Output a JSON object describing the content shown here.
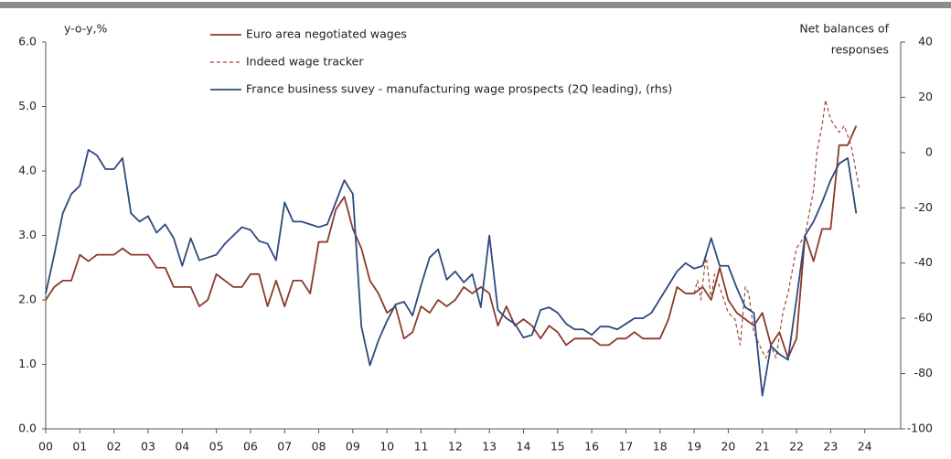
{
  "chart_data": {
    "type": "line",
    "ylabel": "y-o-y,%",
    "y2label": [
      "Net balances of",
      "responses"
    ],
    "xlim": [
      0,
      25
    ],
    "xticks": [
      {
        "value": 0,
        "label": "00"
      },
      {
        "value": 1,
        "label": "01"
      },
      {
        "value": 2,
        "label": "02"
      },
      {
        "value": 3,
        "label": "03"
      },
      {
        "value": 4,
        "label": "04"
      },
      {
        "value": 5,
        "label": "05"
      },
      {
        "value": 6,
        "label": "06"
      },
      {
        "value": 7,
        "label": "07"
      },
      {
        "value": 8,
        "label": "08"
      },
      {
        "value": 9,
        "label": "09"
      },
      10,
      11,
      12,
      13,
      14,
      15,
      16,
      17,
      18,
      19,
      20,
      21,
      22,
      23,
      24
    ],
    "ylim": [
      0,
      6
    ],
    "yticks": [
      {
        "value": 0,
        "label": "0.0"
      },
      {
        "value": 1,
        "label": "1.0"
      },
      {
        "value": 2,
        "label": "2.0"
      },
      {
        "value": 3,
        "label": "3.0"
      },
      {
        "value": 4,
        "label": "4.0"
      },
      {
        "value": 5,
        "label": "5.0"
      },
      {
        "value": 6,
        "label": "6.0"
      }
    ],
    "y2lim": [
      -100,
      40
    ],
    "y2ticks": [
      -100,
      -80,
      -60,
      -40,
      -20,
      0,
      20,
      40
    ],
    "series": [
      {
        "name": "Euro area negotiated wages",
        "color": "#8b3a2b",
        "dash": false,
        "x": [
          0,
          0.25,
          0.5,
          0.75,
          1,
          1.25,
          1.5,
          1.75,
          2,
          2.25,
          2.5,
          2.75,
          3,
          3.25,
          3.5,
          3.75,
          4,
          4.25,
          4.5,
          4.75,
          5,
          5.25,
          5.5,
          5.75,
          6,
          6.25,
          6.5,
          6.75,
          7,
          7.25,
          7.5,
          7.75,
          8,
          8.25,
          8.5,
          8.75,
          9,
          9.25,
          9.5,
          9.75,
          10,
          10.25,
          10.5,
          10.75,
          11,
          11.25,
          11.5,
          11.75,
          12,
          12.25,
          12.5,
          12.75,
          13,
          13.25,
          13.5,
          13.75,
          14,
          14.25,
          14.5,
          14.75,
          15,
          15.25,
          15.5,
          15.75,
          16,
          16.25,
          16.5,
          16.75,
          17,
          17.25,
          17.5,
          17.75,
          18,
          18.25,
          18.5,
          18.75,
          19,
          19.25,
          19.5,
          19.75,
          20,
          20.25,
          20.5,
          20.75,
          21,
          21.25,
          21.5,
          21.75,
          22,
          22.25,
          22.5,
          22.75,
          23,
          23.25,
          23.5,
          23.75
        ],
        "values": [
          2.0,
          2.2,
          2.3,
          2.3,
          2.7,
          2.6,
          2.7,
          2.7,
          2.7,
          2.8,
          2.7,
          2.7,
          2.7,
          2.5,
          2.5,
          2.2,
          2.2,
          2.2,
          1.9,
          2.0,
          2.4,
          2.3,
          2.2,
          2.2,
          2.4,
          2.4,
          1.9,
          2.3,
          1.9,
          2.3,
          2.3,
          2.1,
          2.9,
          2.9,
          3.4,
          3.6,
          3.1,
          2.8,
          2.3,
          2.1,
          1.8,
          1.9,
          1.4,
          1.5,
          1.9,
          1.8,
          2.0,
          1.9,
          2.0,
          2.2,
          2.1,
          2.2,
          2.1,
          1.6,
          1.9,
          1.6,
          1.7,
          1.6,
          1.4,
          1.6,
          1.5,
          1.3,
          1.4,
          1.4,
          1.4,
          1.3,
          1.3,
          1.4,
          1.4,
          1.5,
          1.4,
          1.4,
          1.4,
          1.7,
          2.2,
          2.1,
          2.1,
          2.2,
          2.0,
          2.5,
          2.0,
          1.8,
          1.7,
          1.6,
          1.8,
          1.3,
          1.5,
          1.1,
          1.4,
          3.0,
          2.6,
          3.1,
          3.1,
          4.4,
          4.4,
          4.7
        ]
      },
      {
        "name": "Indeed wage tracker",
        "color": "#9c4a3a",
        "dash": true,
        "x": [
          19,
          19.1,
          19.2,
          19.35,
          19.5,
          19.6,
          19.75,
          20,
          20.2,
          20.35,
          20.5,
          20.6,
          20.75,
          21,
          21.1,
          21.25,
          21.4,
          21.6,
          21.75,
          22,
          22.25,
          22.5,
          22.6,
          22.75,
          22.85,
          23,
          23.25,
          23.4,
          23.6,
          23.85
        ],
        "values": [
          2.1,
          2.3,
          2.0,
          2.7,
          2.0,
          2.4,
          2.2,
          1.8,
          1.7,
          1.3,
          2.2,
          2.1,
          1.5,
          1.2,
          1.1,
          1.3,
          1.1,
          1.8,
          2.1,
          2.8,
          3.0,
          3.7,
          4.3,
          4.7,
          5.1,
          4.8,
          4.6,
          4.7,
          4.4,
          3.7
        ]
      },
      {
        "name": "France business suvey - manufacturing wage prospects (2Q leading), (rhs)",
        "color": "#2e4a7d",
        "dash": false,
        "axis": "y2",
        "x": [
          0,
          0.25,
          0.5,
          0.75,
          1,
          1.25,
          1.5,
          1.75,
          2,
          2.25,
          2.5,
          2.75,
          3,
          3.25,
          3.5,
          3.75,
          4,
          4.25,
          4.5,
          4.75,
          5,
          5.25,
          5.5,
          5.75,
          6,
          6.25,
          6.5,
          6.75,
          7,
          7.25,
          7.5,
          7.75,
          8,
          8.25,
          8.5,
          8.75,
          9,
          9.25,
          9.5,
          9.75,
          10,
          10.25,
          10.5,
          10.75,
          11,
          11.25,
          11.5,
          11.75,
          12,
          12.25,
          12.5,
          12.75,
          13,
          13.25,
          13.5,
          13.75,
          14,
          14.25,
          14.5,
          14.75,
          15,
          15.25,
          15.5,
          15.75,
          16,
          16.25,
          16.5,
          16.75,
          17,
          17.25,
          17.5,
          17.75,
          18,
          18.25,
          18.5,
          18.75,
          19,
          19.25,
          19.5,
          19.75,
          20,
          20.25,
          20.5,
          20.75,
          21,
          21.25,
          21.5,
          21.75,
          22,
          22.25,
          22.5,
          22.75,
          23,
          23.25,
          23.5,
          23.75
        ],
        "values": [
          -51,
          -37,
          -22,
          -15,
          -12,
          1,
          -1,
          -6,
          -6,
          -2,
          -22,
          -25,
          -23,
          -29,
          -26,
          -31,
          -41,
          -31,
          -39,
          -38,
          -37,
          -33,
          -30,
          -27,
          -28,
          -32,
          -33,
          -39,
          -18,
          -25,
          -25,
          -26,
          -27,
          -26,
          -18,
          -10,
          -15,
          -63,
          -77,
          -68,
          -61,
          -55,
          -54,
          -59,
          -48,
          -38,
          -35,
          -46,
          -43,
          -47,
          -44,
          -56,
          -30,
          -57,
          -60,
          -62,
          -67,
          -66,
          -57,
          -56,
          -58,
          -62,
          -64,
          -64,
          -66,
          -63,
          -63,
          -64,
          -62,
          -60,
          -60,
          -58,
          -53,
          -48,
          -43,
          -40,
          -42,
          -41,
          -31,
          -41,
          -41,
          -49,
          -56,
          -58,
          -88,
          -70,
          -73,
          -75,
          -53,
          -30,
          -25,
          -18,
          -10,
          -4,
          -2,
          -22
        ]
      }
    ]
  }
}
